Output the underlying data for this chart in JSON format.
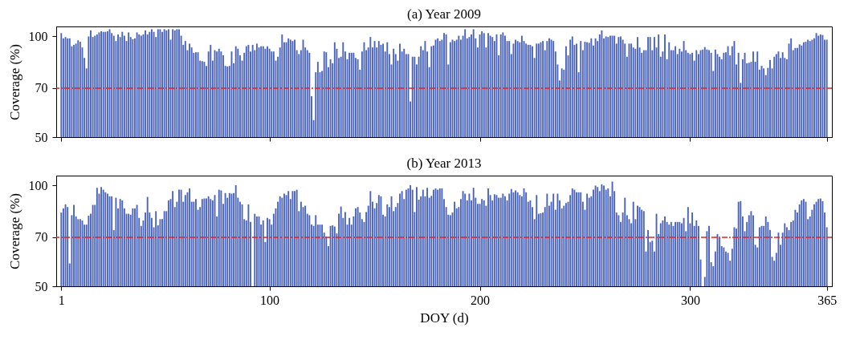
{
  "chart_data": [
    {
      "type": "bar",
      "title": "(a) Year 2009",
      "ylabel": "Coverage (%)",
      "log": true,
      "tick_labels": "y",
      "xlim": [
        0.5,
        365.5
      ],
      "xticks": [
        1,
        100,
        200,
        300,
        365
      ],
      "ylim": [
        50,
        107
      ],
      "yticks": [
        50,
        70,
        100
      ],
      "x": [
        1,
        2,
        3,
        4,
        5,
        6,
        7,
        8,
        9,
        10,
        11,
        12,
        13,
        14,
        15,
        16,
        17,
        18,
        19,
        20,
        21,
        22,
        23,
        24,
        25,
        26,
        27,
        28,
        29,
        30,
        31,
        32,
        33,
        34,
        35,
        36,
        37,
        38,
        39,
        40,
        41,
        42,
        43,
        44,
        45,
        46,
        47,
        48,
        49,
        50,
        51,
        52,
        53,
        54,
        55,
        56,
        57,
        58,
        59,
        60,
        61,
        62,
        63,
        64,
        65,
        66,
        67,
        68,
        69,
        70,
        71,
        72,
        73,
        74,
        75,
        76,
        77,
        78,
        79,
        80,
        81,
        82,
        83,
        84,
        85,
        86,
        87,
        88,
        89,
        90,
        91,
        92,
        93,
        94,
        95,
        96,
        97,
        98,
        99,
        100,
        101,
        102,
        103,
        104,
        105,
        106,
        107,
        108,
        109,
        110,
        111,
        112,
        113,
        114,
        115,
        116,
        117,
        118,
        119,
        120,
        121,
        122,
        123,
        124,
        125,
        126,
        127,
        128,
        129,
        130,
        131,
        132,
        133,
        134,
        135,
        136,
        137,
        138,
        139,
        140,
        141,
        142,
        143,
        144,
        145,
        146,
        147,
        148,
        149,
        150,
        151,
        152,
        153,
        154,
        155,
        156,
        157,
        158,
        159,
        160,
        161,
        162,
        163,
        164,
        165,
        166,
        167,
        168,
        169,
        170,
        171,
        172,
        173,
        174,
        175,
        176,
        177,
        178,
        179,
        180,
        181,
        182,
        183,
        184,
        185,
        186,
        187,
        188,
        189,
        190,
        191,
        192,
        193,
        194,
        195,
        196,
        197,
        198,
        199,
        200,
        201,
        202,
        203,
        204,
        205,
        206,
        207,
        208,
        209,
        210,
        211,
        212,
        213,
        214,
        215,
        216,
        217,
        218,
        219,
        220,
        221,
        222,
        223,
        224,
        225,
        226,
        227,
        228,
        229,
        230,
        231,
        232,
        233,
        234,
        235,
        236,
        237,
        238,
        239,
        240,
        241,
        242,
        243,
        244,
        245,
        246,
        247,
        248,
        249,
        250,
        251,
        252,
        253,
        254,
        255,
        256,
        257,
        258,
        259,
        260,
        261,
        262,
        263,
        264,
        265,
        266,
        267,
        268,
        269,
        270,
        271,
        272,
        273,
        274,
        275,
        276,
        277,
        278,
        279,
        280,
        281,
        282,
        283,
        284,
        285,
        286,
        287,
        288,
        289,
        290,
        291,
        292,
        293,
        294,
        295,
        296,
        297,
        298,
        299,
        300,
        301,
        302,
        303,
        304,
        305,
        306,
        307,
        308,
        309,
        310,
        311,
        312,
        313,
        314,
        315,
        316,
        317,
        318,
        319,
        320,
        321,
        322,
        323,
        324,
        325,
        326,
        327,
        328,
        329,
        330,
        331,
        332,
        333,
        334,
        335,
        336,
        337,
        338,
        339,
        340,
        341,
        342,
        343,
        344,
        345,
        346,
        347,
        348,
        349,
        350,
        351,
        352,
        353,
        354,
        355,
        356,
        357,
        358,
        359,
        360,
        361,
        362,
        363,
        364,
        365
      ],
      "series": [
        {
          "color": "#4a64be",
          "values": [
            102.2,
            98.6,
            99.5,
            98.6,
            98.6,
            93.4,
            94.3,
            95.1,
            97.3,
            96.3,
            92.6,
            86.2,
            80.2,
            99.9,
            104.1,
            99.5,
            100.4,
            101.3,
            102.7,
            103.5,
            103.1,
            103.1,
            103.5,
            105.0,
            102.2,
            100.4,
            96.8,
            101.3,
            99.5,
            103.1,
            100.4,
            96.8,
            102.7,
            99.5,
            98.0,
            98.6,
            102.7,
            101.3,
            100.4,
            101.3,
            104.1,
            101.3,
            103.1,
            105.0,
            103.1,
            99.5,
            105.0,
            105.0,
            103.1,
            105.0,
            104.1,
            105.0,
            97.7,
            105.0,
            104.1,
            105.0,
            105.0,
            100.4,
            94.3,
            96.8,
            90.9,
            95.1,
            92.6,
            89.3,
            89.6,
            89.6,
            84.6,
            84.3,
            83.9,
            81.6,
            90.1,
            94.3,
            84.6,
            90.9,
            90.1,
            91.8,
            90.1,
            87.7,
            81.6,
            81.3,
            81.6,
            90.1,
            83.1,
            93.4,
            91.8,
            87.7,
            84.6,
            89.3,
            93.4,
            94.3,
            90.1,
            94.3,
            90.9,
            95.1,
            92.6,
            93.4,
            93.4,
            91.8,
            93.4,
            91.8,
            90.1,
            90.1,
            84.6,
            86.9,
            92.6,
            101.3,
            96.0,
            96.0,
            98.6,
            97.7,
            96.8,
            97.7,
            90.9,
            88.5,
            90.9,
            97.7,
            92.6,
            90.9,
            89.3,
            66.2,
            56.2,
            78.1,
            83.9,
            78.1,
            78.8,
            90.1,
            89.6,
            80.9,
            85.4,
            83.1,
            96.0,
            91.8,
            86.2,
            86.9,
            96.0,
            90.1,
            85.4,
            89.3,
            89.3,
            89.3,
            86.2,
            85.4,
            79.5,
            90.1,
            96.0,
            90.9,
            92.6,
            99.5,
            92.6,
            96.8,
            92.6,
            96.8,
            94.3,
            95.1,
            90.1,
            96.0,
            88.5,
            82.4,
            91.8,
            88.5,
            84.6,
            95.1,
            90.1,
            91.8,
            88.5,
            88.5,
            63.9,
            86.9,
            86.9,
            82.4,
            86.9,
            93.4,
            90.9,
            96.8,
            90.1,
            80.9,
            93.4,
            93.9,
            97.7,
            98.6,
            96.8,
            97.7,
            102.2,
            101.3,
            82.4,
            96.0,
            97.7,
            96.8,
            97.7,
            100.4,
            97.7,
            100.4,
            105.0,
            98.6,
            99.5,
            101.3,
            105.0,
            98.6,
            92.6,
            101.3,
            103.5,
            102.2,
            92.6,
            102.2,
            100.4,
            99.5,
            96.8,
            101.3,
            87.7,
            101.3,
            102.7,
            100.4,
            96.8,
            96.8,
            88.5,
            95.1,
            97.7,
            96.8,
            96.0,
            100.4,
            96.8,
            95.1,
            94.3,
            94.3,
            93.4,
            86.2,
            95.1,
            95.1,
            96.0,
            96.8,
            90.9,
            96.8,
            98.6,
            97.7,
            96.8,
            90.1,
            82.4,
            73.8,
            80.2,
            79.5,
            93.4,
            87.7,
            97.7,
            99.9,
            94.3,
            95.1,
            78.1,
            96.8,
            90.9,
            96.3,
            96.0,
            95.6,
            98.6,
            93.9,
            98.6,
            96.8,
            101.3,
            104.1,
            98.6,
            99.9,
            99.5,
            100.4,
            100.4,
            100.4,
            95.1,
            99.5,
            99.9,
            97.7,
            95.1,
            86.9,
            95.1,
            95.1,
            92.6,
            91.8,
            99.5,
            92.6,
            89.3,
            90.9,
            90.9,
            99.5,
            99.5,
            90.9,
            99.5,
            92.6,
            101.3,
            86.9,
            90.1,
            101.3,
            85.4,
            96.0,
            90.9,
            90.9,
            93.4,
            88.5,
            91.8,
            90.1,
            96.8,
            90.9,
            89.3,
            88.5,
            89.3,
            84.6,
            90.9,
            88.5,
            90.9,
            91.3,
            92.9,
            91.3,
            90.9,
            89.3,
            78.8,
            91.3,
            88.5,
            86.9,
            85.4,
            89.3,
            89.6,
            93.4,
            87.7,
            93.4,
            96.8,
            82.4,
            89.3,
            72.6,
            85.4,
            89.3,
            83.1,
            83.4,
            83.9,
            90.1,
            83.9,
            90.1,
            79.5,
            81.6,
            80.2,
            76.6,
            80.5,
            85.0,
            80.2,
            86.9,
            88.5,
            90.1,
            86.2,
            89.6,
            86.2,
            85.4,
            95.1,
            98.6,
            90.9,
            92.3,
            92.3,
            94.6,
            93.9,
            96.0,
            96.3,
            97.7,
            96.8,
            97.7,
            98.6,
            102.2,
            100.4,
            101.3,
            100.9,
            97.7,
            97.7
          ]
        }
      ],
      "ref_lines": [
        {
          "axis": "y",
          "value": 70,
          "color": "#e8211f",
          "line_style": "dashed"
        }
      ]
    },
    {
      "type": "bar",
      "title": "(b) Year 2013",
      "xlabel": "DOY (d)",
      "ylabel": "Coverage (%)",
      "log": true,
      "xlim": [
        0.5,
        365.5
      ],
      "xticks": [
        1,
        100,
        200,
        300,
        365
      ],
      "ylim": [
        50,
        107
      ],
      "yticks": [
        50,
        70,
        100
      ],
      "x": [
        1,
        2,
        3,
        4,
        5,
        6,
        7,
        8,
        9,
        10,
        11,
        12,
        13,
        14,
        15,
        16,
        17,
        18,
        19,
        20,
        21,
        22,
        23,
        24,
        25,
        26,
        27,
        28,
        29,
        30,
        31,
        32,
        33,
        34,
        35,
        36,
        37,
        38,
        39,
        40,
        41,
        42,
        43,
        44,
        45,
        46,
        47,
        48,
        49,
        50,
        51,
        52,
        53,
        54,
        55,
        56,
        57,
        58,
        59,
        60,
        61,
        62,
        63,
        64,
        65,
        66,
        67,
        68,
        69,
        70,
        71,
        72,
        73,
        74,
        75,
        76,
        77,
        78,
        79,
        80,
        81,
        82,
        83,
        84,
        85,
        86,
        87,
        88,
        89,
        90,
        91,
        92,
        93,
        94,
        95,
        96,
        97,
        98,
        99,
        100,
        101,
        102,
        103,
        104,
        105,
        106,
        107,
        108,
        109,
        110,
        111,
        112,
        113,
        114,
        115,
        116,
        117,
        118,
        119,
        120,
        121,
        122,
        123,
        124,
        125,
        126,
        127,
        128,
        129,
        130,
        131,
        132,
        133,
        134,
        135,
        136,
        137,
        138,
        139,
        140,
        141,
        142,
        143,
        144,
        145,
        146,
        147,
        148,
        149,
        150,
        151,
        152,
        153,
        154,
        155,
        156,
        157,
        158,
        159,
        160,
        161,
        162,
        163,
        164,
        165,
        166,
        167,
        168,
        169,
        170,
        171,
        172,
        173,
        174,
        175,
        176,
        177,
        178,
        179,
        180,
        181,
        182,
        183,
        184,
        185,
        186,
        187,
        188,
        189,
        190,
        191,
        192,
        193,
        194,
        195,
        196,
        197,
        198,
        199,
        200,
        201,
        202,
        203,
        204,
        205,
        206,
        207,
        208,
        209,
        210,
        211,
        212,
        213,
        214,
        215,
        216,
        217,
        218,
        219,
        220,
        221,
        222,
        223,
        224,
        225,
        226,
        227,
        228,
        229,
        230,
        231,
        232,
        233,
        234,
        235,
        236,
        237,
        238,
        239,
        240,
        241,
        242,
        243,
        244,
        245,
        246,
        247,
        248,
        249,
        250,
        251,
        252,
        253,
        254,
        255,
        256,
        257,
        258,
        259,
        260,
        261,
        262,
        263,
        264,
        265,
        266,
        267,
        268,
        269,
        270,
        271,
        272,
        273,
        274,
        275,
        276,
        277,
        278,
        279,
        280,
        281,
        282,
        283,
        284,
        285,
        286,
        287,
        288,
        289,
        290,
        291,
        292,
        293,
        294,
        295,
        296,
        297,
        298,
        299,
        300,
        301,
        302,
        303,
        304,
        305,
        306,
        307,
        308,
        309,
        310,
        311,
        312,
        313,
        314,
        315,
        316,
        317,
        318,
        319,
        320,
        321,
        322,
        323,
        324,
        325,
        326,
        327,
        328,
        329,
        330,
        331,
        332,
        333,
        334,
        335,
        336,
        337,
        338,
        339,
        340,
        341,
        342,
        343,
        344,
        345,
        346,
        347,
        348,
        349,
        350,
        351,
        352,
        353,
        354,
        355,
        356,
        357,
        358,
        359,
        360,
        361,
        362,
        363,
        364,
        365
      ],
      "series": [
        {
          "color": "#4a64be",
          "values": [
            83.0,
            85.4,
            87.8,
            86.2,
            58.5,
            81.5,
            87.5,
            80.8,
            79.3,
            79.3,
            78.6,
            76.4,
            76.4,
            81.2,
            82.3,
            87.5,
            87.5,
            98.4,
            94.5,
            98.9,
            97.1,
            95.4,
            94.5,
            92.8,
            92.8,
            73.6,
            91.9,
            85.4,
            91.1,
            90.2,
            85.4,
            82.3,
            82.3,
            81.8,
            85.4,
            85.4,
            87.5,
            80.0,
            75.7,
            78.6,
            83.0,
            92.4,
            83.0,
            80.0,
            75.0,
            83.8,
            76.0,
            79.3,
            79.3,
            83.8,
            83.8,
            90.2,
            91.1,
            96.2,
            86.2,
            89.4,
            97.1,
            97.1,
            89.4,
            93.6,
            95.4,
            98.0,
            89.4,
            89.4,
            91.1,
            84.6,
            86.2,
            91.1,
            91.4,
            91.4,
            92.8,
            91.1,
            90.2,
            93.6,
            80.8,
            97.1,
            96.6,
            88.1,
            94.9,
            91.9,
            94.9,
            94.5,
            94.9,
            100.2,
            91.9,
            89.4,
            87.8,
            79.3,
            78.6,
            87.8,
            77.8,
            null,
            82.3,
            80.8,
            80.8,
            76.4,
            78.6,
            67.8,
            80.0,
            79.3,
            76.4,
            82.3,
            85.4,
            89.4,
            92.8,
            91.9,
            94.5,
            93.6,
            96.2,
            91.1,
            96.2,
            96.2,
            97.1,
            83.8,
            89.4,
            86.2,
            87.0,
            82.3,
            81.5,
            76.4,
            75.7,
            81.5,
            76.4,
            76.4,
            76.4,
            72.3,
            70.3,
            65.9,
            75.7,
            76.0,
            75.4,
            71.9,
            82.3,
            86.5,
            80.0,
            83.3,
            76.4,
            80.0,
            76.4,
            80.8,
            85.4,
            86.2,
            83.0,
            79.3,
            77.8,
            83.3,
            87.0,
            96.2,
            89.4,
            85.4,
            88.6,
            93.6,
            92.8,
            81.8,
            80.8,
            87.8,
            86.2,
            92.8,
            83.8,
            86.2,
            88.6,
            94.5,
            96.2,
            91.1,
            97.1,
            98.0,
            100.2,
            97.1,
            83.3,
            98.9,
            90.7,
            92.8,
            97.1,
            92.8,
            98.4,
            91.9,
            93.1,
            97.1,
            98.0,
            97.1,
            98.0,
            98.0,
            91.1,
            86.2,
            81.8,
            81.5,
            83.0,
            89.4,
            85.4,
            86.2,
            91.1,
            96.2,
            94.5,
            90.2,
            94.5,
            90.2,
            98.4,
            91.9,
            88.1,
            88.1,
            91.1,
            90.2,
            87.0,
            98.0,
            93.6,
            90.2,
            94.1,
            93.6,
            91.9,
            91.9,
            94.5,
            92.8,
            90.2,
            94.5,
            97.6,
            95.4,
            96.6,
            95.4,
            93.6,
            92.8,
            98.0,
            95.4,
            89.4,
            90.2,
            86.2,
            79.3,
            93.6,
            82.3,
            82.6,
            83.0,
            86.2,
            94.5,
            87.0,
            89.4,
            94.5,
            84.6,
            94.5,
            90.2,
            85.4,
            87.0,
            88.6,
            89.4,
            93.6,
            98.0,
            97.1,
            95.4,
            95.4,
            95.4,
            89.4,
            84.6,
            94.5,
            91.9,
            92.8,
            97.1,
            99.9,
            98.9,
            96.2,
            100.8,
            99.9,
            97.1,
            98.0,
            92.8,
            102.7,
            96.2,
            83.0,
            81.5,
            77.8,
            83.0,
            91.9,
            81.5,
            79.3,
            77.1,
            89.4,
            79.3,
            87.0,
            86.2,
            84.6,
            83.8,
            63.5,
            73.6,
            67.8,
            68.4,
            63.5,
            82.3,
            71.6,
            77.1,
            78.6,
            80.8,
            77.8,
            76.4,
            77.8,
            75.7,
            77.8,
            77.8,
            77.8,
            77.1,
            80.0,
            73.0,
            86.2,
            77.1,
            83.0,
            75.7,
            78.6,
            75.7,
            60.1,
            null,
            53.3,
            73.0,
            75.7,
            59.0,
            57.4,
            63.5,
            71.6,
            69.7,
            65.9,
            65.3,
            63.5,
            62.9,
            59.6,
            64.7,
            75.0,
            74.3,
            89.4,
            89.8,
            80.8,
            73.0,
            77.8,
            81.5,
            83.8,
            81.5,
            66.5,
            65.3,
            75.0,
            75.7,
            75.7,
            80.8,
            77.8,
            73.6,
            61.2,
            59.6,
            62.9,
            72.3,
            66.5,
            72.3,
            77.1,
            75.0,
            73.6,
            77.8,
            78.6,
            84.6,
            83.0,
            87.8,
            90.2,
            91.1,
            89.4,
            79.3,
            80.8,
            84.6,
            87.8,
            89.4,
            91.1,
            91.4,
            89.7,
            83.0,
            75.0
          ]
        }
      ],
      "ref_lines": [
        {
          "axis": "y",
          "value": 70,
          "color": "#e8211f",
          "line_style": "dashed"
        }
      ]
    }
  ]
}
